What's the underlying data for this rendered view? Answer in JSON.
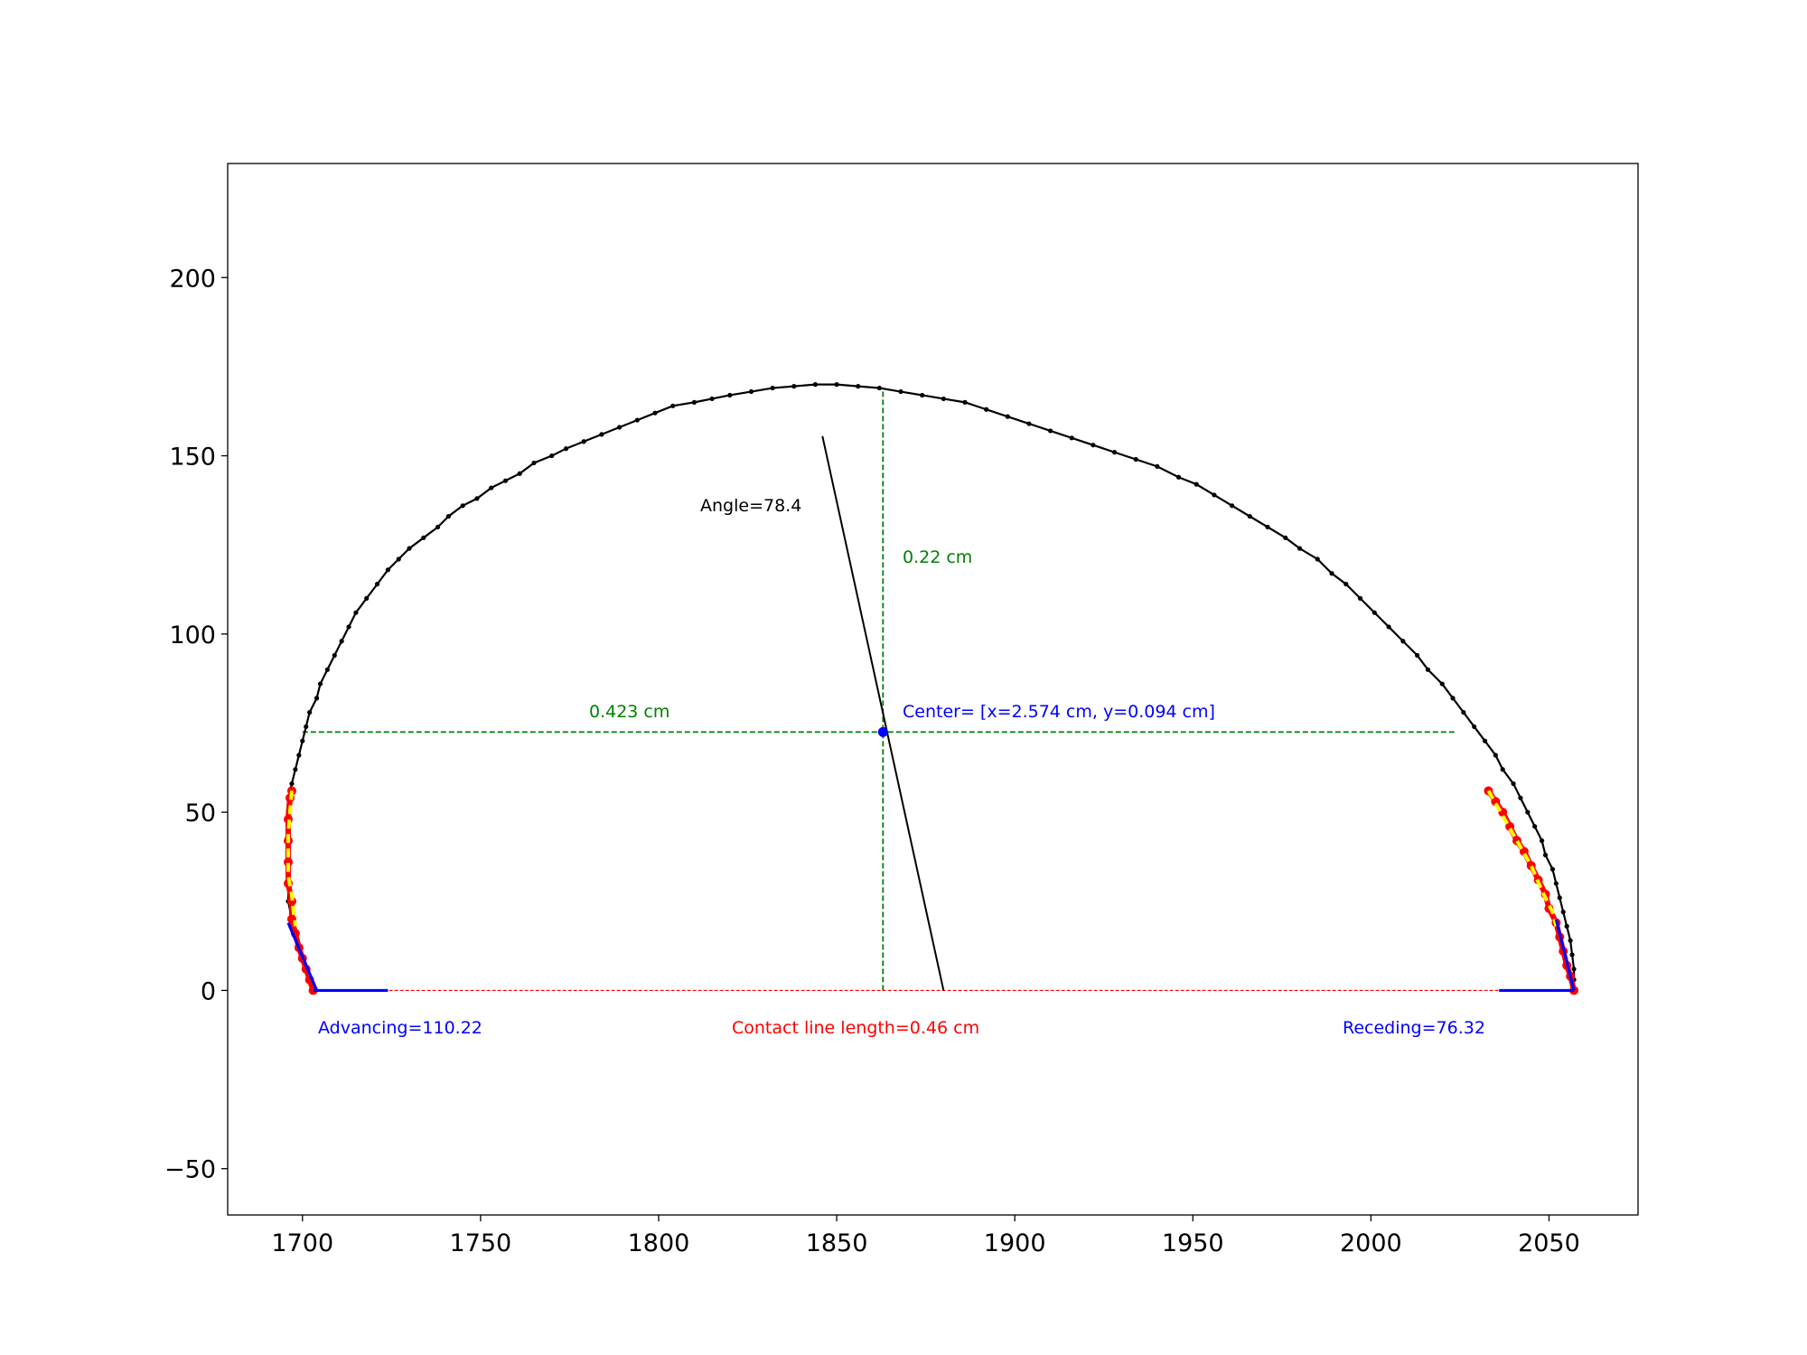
{
  "chart_data": {
    "type": "scatter",
    "title": "",
    "xlabel": "",
    "ylabel": "",
    "xlim": [
      1679,
      2075
    ],
    "ylim": [
      -63,
      232
    ],
    "xticks": [
      1700,
      1750,
      1800,
      1850,
      1900,
      1950,
      2000,
      2050
    ],
    "yticks": [
      -50,
      0,
      50,
      100,
      150,
      200
    ],
    "xtick_labels": [
      "1700",
      "1750",
      "1800",
      "1850",
      "1900",
      "1950",
      "2000",
      "2050"
    ],
    "ytick_labels": [
      "−50",
      "0",
      "50",
      "100",
      "150",
      "200"
    ],
    "grid": false,
    "legend": "none",
    "colors": {
      "profile": "#000000",
      "dimension_lines": "#008000",
      "tangent_lines": "#0000ff",
      "fit_points": "#ff0000",
      "fit_curve": "#ffff00",
      "baseline": "#ff0000",
      "center_point": "#0000ff",
      "angle_line": "#000000"
    },
    "profile_left": [
      [
        1703,
        0
      ],
      [
        1702,
        3
      ],
      [
        1701,
        6
      ],
      [
        1700,
        9
      ],
      [
        1699,
        12
      ],
      [
        1698,
        16
      ],
      [
        1697,
        20
      ],
      [
        1696,
        25
      ],
      [
        1696,
        30
      ],
      [
        1695.5,
        36
      ],
      [
        1695.5,
        42
      ],
      [
        1695.5,
        48
      ],
      [
        1696,
        54
      ],
      [
        1697,
        58
      ],
      [
        1698,
        62
      ],
      [
        1699,
        66
      ],
      [
        1700,
        70
      ],
      [
        1701,
        74
      ],
      [
        1702,
        78
      ],
      [
        1704,
        82
      ],
      [
        1705,
        86
      ],
      [
        1707,
        90
      ],
      [
        1709,
        94
      ],
      [
        1711,
        98
      ],
      [
        1713,
        102
      ],
      [
        1715,
        106
      ],
      [
        1718,
        110
      ],
      [
        1721,
        114
      ],
      [
        1724,
        118
      ],
      [
        1727,
        121
      ],
      [
        1730,
        124
      ],
      [
        1734,
        127
      ],
      [
        1738,
        130
      ],
      [
        1741,
        133
      ],
      [
        1745,
        136
      ],
      [
        1749,
        138
      ],
      [
        1753,
        141
      ],
      [
        1757,
        143
      ],
      [
        1761,
        145
      ],
      [
        1765,
        148
      ],
      [
        1770,
        150
      ],
      [
        1774,
        152
      ],
      [
        1779,
        154
      ],
      [
        1784,
        156
      ],
      [
        1789,
        158
      ],
      [
        1794,
        160
      ],
      [
        1799,
        162
      ],
      [
        1804,
        164
      ],
      [
        1810,
        165
      ],
      [
        1815,
        166
      ],
      [
        1820,
        167
      ],
      [
        1826,
        168
      ],
      [
        1832,
        169
      ],
      [
        1838,
        169.5
      ],
      [
        1844,
        170
      ],
      [
        1850,
        170
      ],
      [
        1856,
        169.5
      ],
      [
        1862,
        169
      ]
    ],
    "profile_right": [
      [
        1862,
        169
      ],
      [
        1868,
        168
      ],
      [
        1874,
        167
      ],
      [
        1880,
        166
      ],
      [
        1886,
        165
      ],
      [
        1892,
        163
      ],
      [
        1898,
        161
      ],
      [
        1904,
        159
      ],
      [
        1910,
        157
      ],
      [
        1916,
        155
      ],
      [
        1922,
        153
      ],
      [
        1928,
        151
      ],
      [
        1934,
        149
      ],
      [
        1940,
        147
      ],
      [
        1946,
        144
      ],
      [
        1951,
        142
      ],
      [
        1956,
        139
      ],
      [
        1961,
        136
      ],
      [
        1966,
        133
      ],
      [
        1971,
        130
      ],
      [
        1976,
        127
      ],
      [
        1980,
        124
      ],
      [
        1985,
        121
      ],
      [
        1989,
        117
      ],
      [
        1993,
        114
      ],
      [
        1997,
        110
      ],
      [
        2001,
        106
      ],
      [
        2005,
        102
      ],
      [
        2009,
        98
      ],
      [
        2013,
        94
      ],
      [
        2016,
        90
      ],
      [
        2020,
        86
      ],
      [
        2023,
        82
      ],
      [
        2026,
        78
      ],
      [
        2029,
        74
      ],
      [
        2032,
        70
      ],
      [
        2035,
        66
      ],
      [
        2037,
        62
      ],
      [
        2040,
        58
      ],
      [
        2042,
        54
      ],
      [
        2044,
        50
      ],
      [
        2046,
        46
      ],
      [
        2048,
        42
      ],
      [
        2049,
        38
      ],
      [
        2051,
        34
      ],
      [
        2052,
        30
      ],
      [
        2053,
        26
      ],
      [
        2054,
        22
      ],
      [
        2055,
        18
      ],
      [
        2056,
        14
      ],
      [
        2056.5,
        10
      ],
      [
        2057,
        6
      ],
      [
        2057,
        3
      ],
      [
        2057,
        0
      ]
    ],
    "left_fit_points": [
      [
        1703,
        0
      ],
      [
        1702,
        3
      ],
      [
        1701,
        6
      ],
      [
        1700,
        9
      ],
      [
        1699,
        12
      ],
      [
        1698,
        16
      ],
      [
        1697,
        20
      ],
      [
        1697,
        25
      ],
      [
        1696,
        30
      ],
      [
        1696,
        36
      ],
      [
        1696,
        42
      ],
      [
        1696,
        48
      ],
      [
        1696.5,
        54
      ],
      [
        1697,
        56
      ]
    ],
    "right_fit_points": [
      [
        2033,
        56
      ],
      [
        2035,
        53
      ],
      [
        2037,
        50
      ],
      [
        2039,
        46
      ],
      [
        2041,
        42
      ],
      [
        2043,
        39
      ],
      [
        2045,
        35
      ],
      [
        2047,
        31
      ],
      [
        2049,
        27
      ],
      [
        2050,
        23
      ],
      [
        2052,
        19
      ],
      [
        2053,
        15
      ],
      [
        2054,
        11
      ],
      [
        2055,
        7
      ],
      [
        2056,
        4
      ],
      [
        2057,
        0
      ]
    ],
    "left_fit_curve": [
      [
        1697,
        56
      ],
      [
        1696.5,
        50
      ],
      [
        1696,
        44
      ],
      [
        1696,
        38
      ],
      [
        1696,
        32
      ],
      [
        1697,
        27
      ],
      [
        1697.5,
        22
      ],
      [
        1698,
        18
      ]
    ],
    "right_fit_curve": [
      [
        2033,
        56
      ],
      [
        2037,
        49
      ],
      [
        2041,
        42
      ],
      [
        2045,
        35
      ],
      [
        2048,
        28
      ],
      [
        2051,
        22
      ],
      [
        2052,
        18
      ]
    ],
    "left_tangent": [
      [
        1696,
        19
      ],
      [
        1704,
        0
      ]
    ],
    "right_tangent": [
      [
        2052,
        20
      ],
      [
        2057,
        0
      ]
    ],
    "left_base_segment": [
      [
        1703,
        0
      ],
      [
        1724,
        0
      ]
    ],
    "right_base_segment": [
      [
        2036,
        0
      ],
      [
        2057,
        0
      ]
    ],
    "baseline": [
      [
        1703,
        0
      ],
      [
        2057,
        0
      ]
    ],
    "width_line": [
      [
        1700,
        72.5
      ],
      [
        2024,
        72.5
      ]
    ],
    "height_line": [
      [
        1863,
        0
      ],
      [
        1863,
        169
      ]
    ],
    "center": [
      1863,
      72.5
    ],
    "angle_line": [
      [
        1846,
        155.5
      ],
      [
        1880,
        0
      ]
    ],
    "annotations": {
      "width": "0.423 cm",
      "height": "0.22 cm",
      "center": "Center= [x=2.574 cm, y=0.094 cm]",
      "angle": "Angle=78.4",
      "advancing": "Advancing=110.22",
      "receding": "Receding=76.32",
      "contact_line": "Contact line length=0.46 cm"
    }
  }
}
